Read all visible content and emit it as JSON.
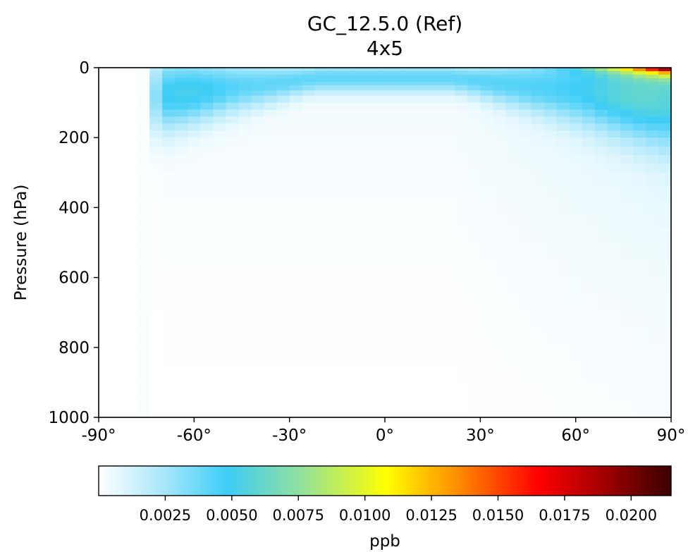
{
  "chart_data": {
    "type": "heatmap",
    "title": "GC_12.5.0 (Ref)",
    "subtitle": "4x5",
    "xlabel": "",
    "ylabel": "Pressure (hPa)",
    "xlim": [
      -90,
      90
    ],
    "ylim": [
      1000,
      0
    ],
    "x_ticks": [
      {
        "value": -90,
        "label": "-90°"
      },
      {
        "value": -60,
        "label": "-60°"
      },
      {
        "value": -30,
        "label": "-30°"
      },
      {
        "value": 0,
        "label": "0°"
      },
      {
        "value": 30,
        "label": "30°"
      },
      {
        "value": 60,
        "label": "60°"
      },
      {
        "value": 90,
        "label": "90°"
      }
    ],
    "y_ticks": [
      {
        "value": 0,
        "label": "0"
      },
      {
        "value": 200,
        "label": "200"
      },
      {
        "value": 400,
        "label": "400"
      },
      {
        "value": 600,
        "label": "600"
      },
      {
        "value": 800,
        "label": "800"
      },
      {
        "value": 1000,
        "label": "1000"
      }
    ],
    "colorbar": {
      "label": "ppb",
      "vmin": 0.0,
      "vmax": 0.0215,
      "stops": [
        {
          "value": 0.0,
          "color": "#ffffff"
        },
        {
          "value": 0.0025,
          "color": "#a6e6fa"
        },
        {
          "value": 0.0048,
          "color": "#3dcdf7"
        },
        {
          "value": 0.0075,
          "color": "#8fe0a0"
        },
        {
          "value": 0.0108,
          "color": "#ffff00"
        },
        {
          "value": 0.0135,
          "color": "#ff8c00"
        },
        {
          "value": 0.0165,
          "color": "#ff0000"
        },
        {
          "value": 0.019,
          "color": "#a00000"
        },
        {
          "value": 0.0215,
          "color": "#3a0000"
        }
      ],
      "ticks": [
        {
          "value": 0.0025,
          "label": "0.0025"
        },
        {
          "value": 0.005,
          "label": "0.0050"
        },
        {
          "value": 0.0075,
          "label": "0.0075"
        },
        {
          "value": 0.01,
          "label": "0.0100"
        },
        {
          "value": 0.0125,
          "label": "0.0125"
        },
        {
          "value": 0.015,
          "label": "0.0150"
        },
        {
          "value": 0.0175,
          "label": "0.0175"
        },
        {
          "value": 0.02,
          "label": "0.0200"
        }
      ]
    },
    "grid": false,
    "grid_resolution": {
      "lat_step_deg": 4,
      "lat_start_deg": -90,
      "lat_end_deg": 90
    },
    "pressure_levels_hPa": [
      0,
      10,
      20,
      30,
      40,
      50,
      65,
      80,
      100,
      120,
      140,
      160,
      180,
      200,
      225,
      250,
      275,
      300,
      340,
      380,
      420,
      460,
      500,
      550,
      600,
      650,
      700,
      750,
      800,
      850,
      900,
      950,
      1000
    ],
    "field_note_upper_band": "values near 0.0048 ppb in 0-200 hPa band south of 60°S to 90°N",
    "field_note_polar_max": "values up to 0.0215 ppb near 90°N at top levels"
  }
}
